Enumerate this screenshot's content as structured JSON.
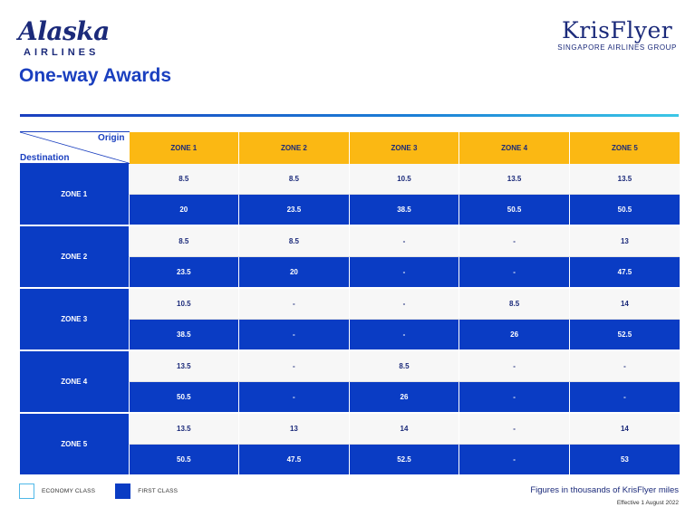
{
  "alaska_logo": {
    "wordmark": "Alaska",
    "subline": "AIRLINES"
  },
  "krisflyer_logo": {
    "wordmark": "KrisFlyer",
    "subline": "SINGAPORE AIRLINES GROUP"
  },
  "page_title": "One-way Awards",
  "table": {
    "corner": {
      "origin_label": "Origin",
      "destination_label": "Destination"
    },
    "columns": [
      "ZONE 1",
      "ZONE 2",
      "ZONE 3",
      "ZONE 4",
      "ZONE 5"
    ],
    "rows": [
      {
        "label": "ZONE 1",
        "economy": [
          "8.5",
          "8.5",
          "10.5",
          "13.5",
          "13.5"
        ],
        "first": [
          "20",
          "23.5",
          "38.5",
          "50.5",
          "50.5"
        ]
      },
      {
        "label": "ZONE 2",
        "economy": [
          "8.5",
          "8.5",
          "-",
          "-",
          "13"
        ],
        "first": [
          "23.5",
          "20",
          "-",
          "-",
          "47.5"
        ]
      },
      {
        "label": "ZONE 3",
        "economy": [
          "10.5",
          "-",
          "-",
          "8.5",
          "14"
        ],
        "first": [
          "38.5",
          "-",
          "-",
          "26",
          "52.5"
        ]
      },
      {
        "label": "ZONE 4",
        "economy": [
          "13.5",
          "-",
          "8.5",
          "-",
          "-"
        ],
        "first": [
          "50.5",
          "-",
          "26",
          "-",
          "-"
        ]
      },
      {
        "label": "ZONE 5",
        "economy": [
          "13.5",
          "13",
          "14",
          "-",
          "14"
        ],
        "first": [
          "50.5",
          "47.5",
          "52.5",
          "-",
          "53"
        ]
      }
    ]
  },
  "legend": {
    "economy_label": "ECONOMY CLASS",
    "first_label": "FIRST CLASS"
  },
  "footer": {
    "note": "Figures in thousands of KrisFlyer miles",
    "effective": "Effective 1 August 2022"
  },
  "colors": {
    "brand_blue": "#0a3cc4",
    "header_yellow": "#fbb813",
    "navy": "#1b2a7a"
  }
}
